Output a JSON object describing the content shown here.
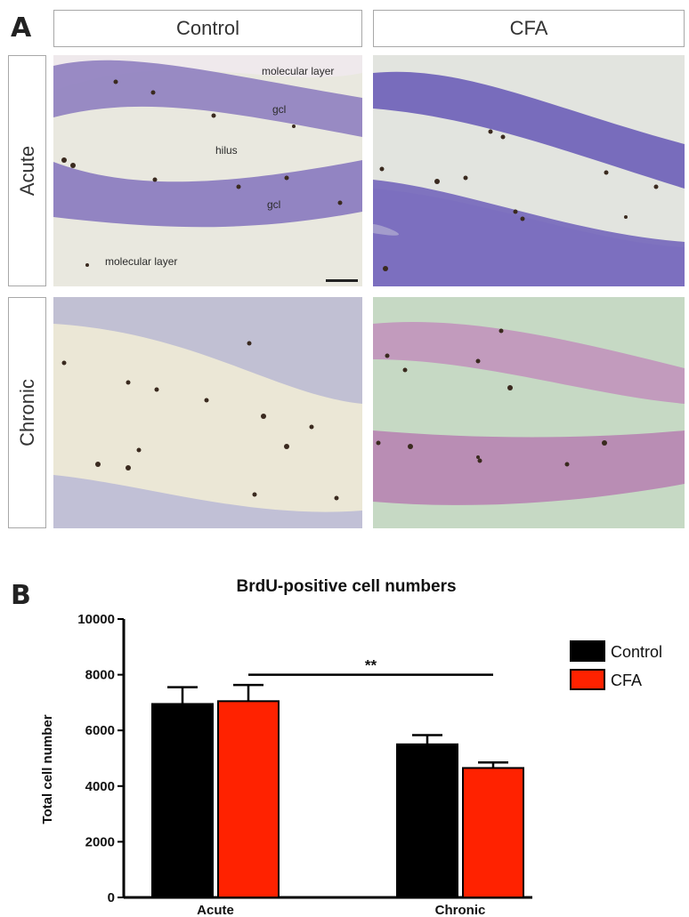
{
  "panel_a": {
    "letter": "A",
    "columns": [
      "Control",
      "CFA"
    ],
    "rows": [
      "Acute",
      "Chronic"
    ],
    "annotations": {
      "molecular_layer_top": "molecular layer",
      "gcl_top": "gcl",
      "hilus": "hilus",
      "gcl_bottom": "gcl",
      "molecular_layer_bottom": "molecular layer"
    }
  },
  "panel_b": {
    "letter": "B"
  },
  "chart_data": {
    "type": "bar",
    "title": "BrdU-positive cell numbers",
    "xlabel": "",
    "ylabel": "Total cell number",
    "categories": [
      "Acute",
      "Chronic"
    ],
    "ylim": [
      0,
      10000
    ],
    "yticks": [
      "0",
      "2000",
      "4000",
      "6000",
      "8000",
      "10000"
    ],
    "series": [
      {
        "name": "Control",
        "color": "#000000",
        "values": [
          6950,
          5500
        ],
        "errors": [
          600,
          330
        ]
      },
      {
        "name": "CFA",
        "color": "#ff2200",
        "values": [
          7050,
          4650
        ],
        "errors": [
          580,
          200
        ]
      }
    ],
    "significance": {
      "label": "**",
      "from_category": 0,
      "to_category": 1
    },
    "legend_position": "right"
  }
}
